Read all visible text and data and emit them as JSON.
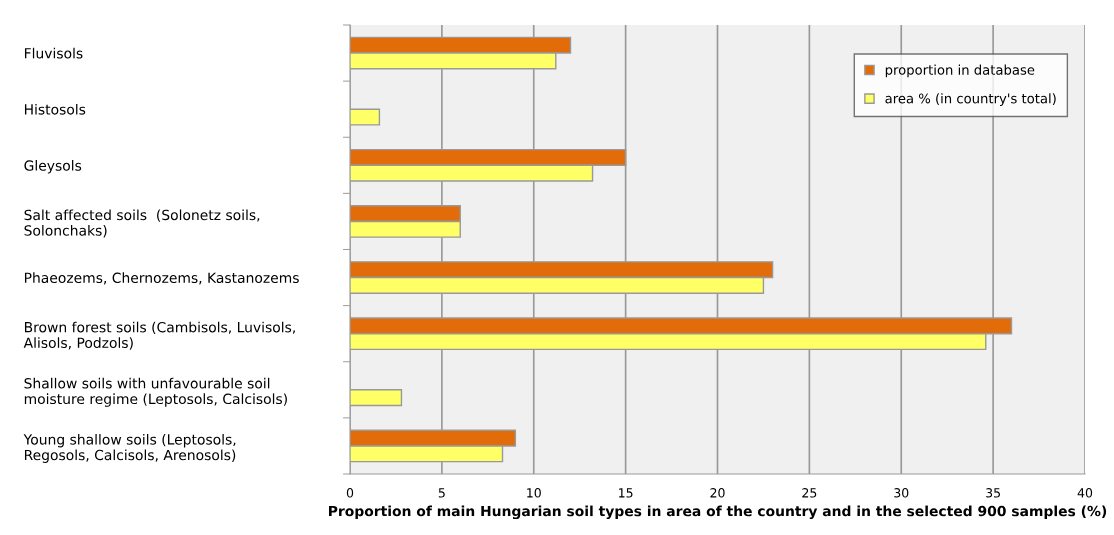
{
  "chart_data": {
    "type": "bar",
    "orientation": "horizontal",
    "xlabel": "Proportion of main Hungarian soil types in area of the country and in the selected 900 samples (%)",
    "categories": [
      "Fluvisols",
      "Histosols",
      "Gleysols",
      "Salt affected soils  (Solonetz soils,\nSolonchaks)",
      "Phaeozems, Chernozems, Kastanozems",
      "Brown forest soils (Cambisols, Luvisols,\nAlisols, Podzols)",
      "Shallow soils with unfavourable soil\nmoisture regime (Leptosols, Calcisols)",
      "Young shallow soils (Leptosols,\nRegosols, Calcisols, Arenosols)"
    ],
    "series": [
      {
        "name": "proportion in database",
        "color": "#e36c0a",
        "values": [
          12.0,
          null,
          15.0,
          6.0,
          23.0,
          36.0,
          null,
          9.0
        ]
      },
      {
        "name": "area % (in country's total)",
        "color": "#ffff66",
        "values": [
          11.2,
          1.6,
          13.2,
          6.0,
          22.5,
          34.6,
          2.8,
          8.3
        ]
      }
    ],
    "xlim": [
      0,
      40
    ],
    "xticks": [
      0,
      5,
      10,
      15,
      20,
      25,
      30,
      35,
      40
    ],
    "grid": "x",
    "legend": "top right"
  }
}
